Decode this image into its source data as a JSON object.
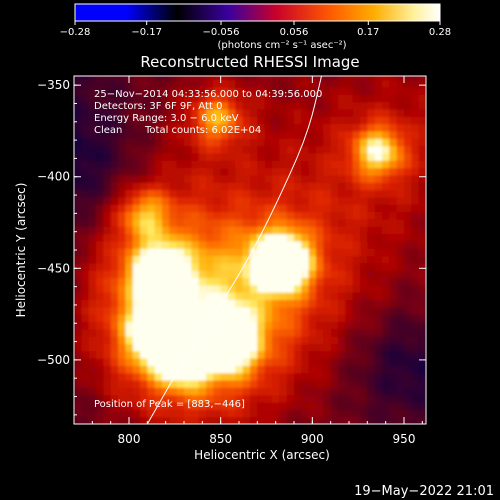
{
  "chart_data": {
    "type": "heatmap",
    "title": "Reconstructed RHESSI Image",
    "xlabel": "Heliocentric X (arcsec)",
    "ylabel": "Heliocentric Y (arcsec)",
    "xlim": [
      770,
      962
    ],
    "ylim": [
      -535,
      -345
    ],
    "x_ticks": [
      800,
      850,
      900,
      950
    ],
    "y_ticks": [
      -350,
      -400,
      -450,
      -500
    ],
    "x_tick_labels": [
      "800",
      "850",
      "900",
      "950"
    ],
    "y_tick_labels": [
      "−350",
      "−400",
      "−450",
      "−500"
    ],
    "colorbar": {
      "min": -0.28,
      "max": 0.28,
      "ticks": [
        -0.28,
        -0.17,
        -0.056,
        0.056,
        0.17,
        0.28
      ],
      "tick_labels": [
        "−0.28",
        "−0.17",
        "−0.056",
        "0.056",
        "0.17",
        "0.28"
      ],
      "colors": [
        "#0000ff",
        "#000000",
        "#3a00a0",
        "#c8002a",
        "#ff5a00",
        "#ffae00",
        "#fff2a0",
        "#ffffff"
      ],
      "unit_label": "(photons cm⁻² s⁻¹ asec⁻²)"
    },
    "annotations": {
      "time_range": "25−Nov−2014 04:33:56.000 to 04:39:56.000",
      "detectors": "Detectors: 3F 6F 9F, Att 0",
      "energy_range": "Energy Range: 3.0 − 6.0 keV",
      "clean_label": "Clean",
      "total_counts": "Total counts: 6.02E+04",
      "peak_position": "Position of Peak = [883,−446]"
    },
    "peak": [
      883,
      -446
    ],
    "bright_sources": [
      {
        "x": 883,
        "y": -446,
        "level": 0.28
      },
      {
        "x": 817,
        "y": -452,
        "level": 0.19
      },
      {
        "x": 816,
        "y": -485,
        "level": 0.21
      },
      {
        "x": 830,
        "y": -497,
        "level": 0.18
      },
      {
        "x": 855,
        "y": -490,
        "level": 0.19
      },
      {
        "x": 936,
        "y": -386,
        "level": 0.15
      },
      {
        "x": 848,
        "y": -368,
        "level": 0.12
      },
      {
        "x": 808,
        "y": -420,
        "level": 0.11
      }
    ],
    "limb_curve": [
      [
        810,
        -535
      ],
      [
        830,
        -500
      ],
      [
        850,
        -470
      ],
      [
        868,
        -440
      ],
      [
        885,
        -405
      ],
      [
        898,
        -375
      ],
      [
        905,
        -345
      ]
    ],
    "timestamp": "19−May−2022 21:01"
  }
}
